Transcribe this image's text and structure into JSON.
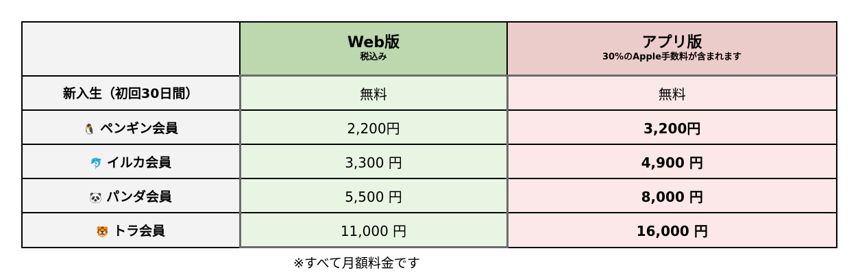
{
  "header": {
    "web": {
      "title": "Web版",
      "subtitle": "税込み"
    },
    "app": {
      "title": "アプリ版",
      "subtitle": "30%のApple手数料が含まれます"
    }
  },
  "rows": [
    {
      "emoji": "",
      "label": "新入生（初回30日間）",
      "web": "無料",
      "app": "無料"
    },
    {
      "emoji": "🐧",
      "label": "ペンギン会員",
      "web": "2,200円",
      "app": "3,200円"
    },
    {
      "emoji": "🐬",
      "label": "イルカ会員",
      "web": "3,300 円",
      "app": "4,900 円"
    },
    {
      "emoji": "🐼",
      "label": "パンダ会員",
      "web": "5,500 円",
      "app": "8,000 円"
    },
    {
      "emoji": "🐯",
      "label": "トラ会員",
      "web": "11,000 円",
      "app": "16,000 円"
    }
  ],
  "note": "※すべて月額料金です",
  "colors": {
    "web_header": "#bdd7ae",
    "web_cell": "#e9f5e3",
    "app_header": "#eccccb",
    "app_cell": "#fce8e8",
    "label_cell": "#f3f3f3"
  }
}
